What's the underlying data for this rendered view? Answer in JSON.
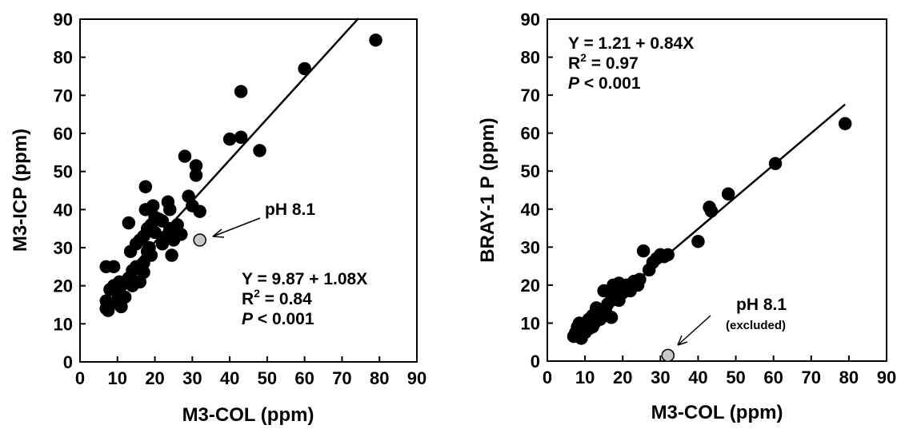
{
  "chart_data": [
    {
      "type": "scatter",
      "xlabel": "M3-COL (ppm)",
      "ylabel": "M3-ICP (ppm)",
      "xlim": [
        0,
        90
      ],
      "ylim": [
        0,
        90
      ],
      "xticks": [
        "0",
        "10",
        "20",
        "30",
        "40",
        "50",
        "60",
        "70",
        "80",
        "90"
      ],
      "yticks": [
        "0",
        "10",
        "20",
        "30",
        "40",
        "50",
        "60",
        "70",
        "80",
        "90"
      ],
      "grid": false,
      "series": [
        {
          "color": "#000000",
          "points": [
            [
              7,
              25
            ],
            [
              7,
              16
            ],
            [
              7,
              14
            ],
            [
              7.5,
              13.5
            ],
            [
              8,
              19
            ],
            [
              8,
              15
            ],
            [
              9,
              25
            ],
            [
              9,
              20
            ],
            [
              10,
              18
            ],
            [
              10,
              16
            ],
            [
              10.5,
              21
            ],
            [
              11,
              14.5
            ],
            [
              11,
              20
            ],
            [
              12,
              17
            ],
            [
              12,
              21
            ],
            [
              13,
              22
            ],
            [
              13,
              36.5
            ],
            [
              13.5,
              29
            ],
            [
              14,
              24
            ],
            [
              14,
              20
            ],
            [
              15,
              21
            ],
            [
              15,
              25
            ],
            [
              15,
              31
            ],
            [
              16,
              32
            ],
            [
              16,
              21
            ],
            [
              17,
              26
            ],
            [
              17,
              23.5
            ],
            [
              17,
              33
            ],
            [
              17.5,
              46
            ],
            [
              17.5,
              40
            ],
            [
              18,
              29
            ],
            [
              18,
              35
            ],
            [
              18.5,
              30
            ],
            [
              19,
              28
            ],
            [
              19,
              36
            ],
            [
              19.5,
              41
            ],
            [
              20,
              34
            ],
            [
              20,
              38
            ],
            [
              21,
              37.5
            ],
            [
              22,
              31
            ],
            [
              22,
              37
            ],
            [
              23,
              33
            ],
            [
              23.5,
              42
            ],
            [
              24,
              40
            ],
            [
              24,
              35
            ],
            [
              24.5,
              28
            ],
            [
              25,
              32
            ],
            [
              26,
              36
            ],
            [
              27,
              33.5
            ],
            [
              28,
              54
            ],
            [
              29,
              43.5
            ],
            [
              30,
              41
            ],
            [
              31,
              51.5
            ],
            [
              31,
              49
            ],
            [
              32,
              39.5
            ],
            [
              40,
              58.5
            ],
            [
              43,
              71
            ],
            [
              43,
              59
            ],
            [
              48,
              55.5
            ],
            [
              60,
              77
            ],
            [
              79,
              84.5
            ]
          ]
        },
        {
          "color": "#c8c8c8",
          "points": [
            [
              32,
              32
            ]
          ]
        }
      ],
      "fit_line": {
        "intercept": 9.87,
        "slope": 1.08,
        "x_range": [
          7,
          74.4
        ]
      },
      "annotations": {
        "arrow_label": "pH 8.1",
        "eq_line1": "Y = 9.87 + 1.08X",
        "eq_r2_prefix": "R",
        "eq_r2_sup": "2",
        "eq_r2_suffix": " = 0.84",
        "eq_p_italic": "P",
        "eq_p_suffix": " < 0.001"
      }
    },
    {
      "type": "scatter",
      "xlabel": "M3-COL (ppm)",
      "ylabel": "BRAY-1 P (ppm)",
      "xlim": [
        0,
        90
      ],
      "ylim": [
        0,
        90
      ],
      "xticks": [
        "0",
        "10",
        "20",
        "30",
        "40",
        "50",
        "60",
        "70",
        "80",
        "90"
      ],
      "yticks": [
        "0",
        "10",
        "20",
        "30",
        "40",
        "50",
        "60",
        "70",
        "80",
        "90"
      ],
      "grid": false,
      "series": [
        {
          "color": "#000000",
          "points": [
            [
              7,
              6.5
            ],
            [
              7.5,
              7.5
            ],
            [
              8,
              9
            ],
            [
              8.5,
              10
            ],
            [
              9,
              6
            ],
            [
              9,
              8
            ],
            [
              10,
              9
            ],
            [
              10,
              7.5
            ],
            [
              10.5,
              10
            ],
            [
              11,
              8.5
            ],
            [
              11,
              11
            ],
            [
              12,
              9
            ],
            [
              12,
              12
            ],
            [
              12.5,
              10
            ],
            [
              13,
              14
            ],
            [
              13,
              11
            ],
            [
              14,
              13
            ],
            [
              14,
              11
            ],
            [
              15,
              12
            ],
            [
              15,
              18.5
            ],
            [
              15.5,
              14
            ],
            [
              16,
              12
            ],
            [
              16,
              15
            ],
            [
              17,
              16
            ],
            [
              17,
              11.5
            ],
            [
              17.5,
              20
            ],
            [
              18,
              17
            ],
            [
              18,
              19
            ],
            [
              19,
              16
            ],
            [
              19,
              20.5
            ],
            [
              20,
              18
            ],
            [
              21,
              20
            ],
            [
              22,
              18.5
            ],
            [
              23,
              21
            ],
            [
              24,
              20
            ],
            [
              24.5,
              21.5
            ],
            [
              25.5,
              29
            ],
            [
              27,
              24
            ],
            [
              28,
              26
            ],
            [
              29,
              27
            ],
            [
              30,
              28
            ],
            [
              31,
              27.5
            ],
            [
              32,
              28
            ],
            [
              40,
              31.5
            ],
            [
              43,
              40.5
            ],
            [
              43.5,
              39.5
            ],
            [
              48,
              44
            ],
            [
              60.5,
              52
            ],
            [
              79,
              62.5
            ]
          ]
        },
        {
          "color": "#c8c8c8",
          "points": [
            [
              32,
              1.5
            ]
          ]
        }
      ],
      "fit_line": {
        "intercept": 1.21,
        "slope": 0.84,
        "x_range": [
          7,
          79
        ]
      },
      "annotations": {
        "arrow_label": "pH 8.1",
        "arrow_sublabel": "(excluded)",
        "eq_line1": "Y = 1.21 + 0.84X",
        "eq_r2_prefix": "R",
        "eq_r2_sup": "2",
        "eq_r2_suffix": " = 0.97",
        "eq_p_italic": "P",
        "eq_p_suffix": " < 0.001"
      }
    }
  ]
}
